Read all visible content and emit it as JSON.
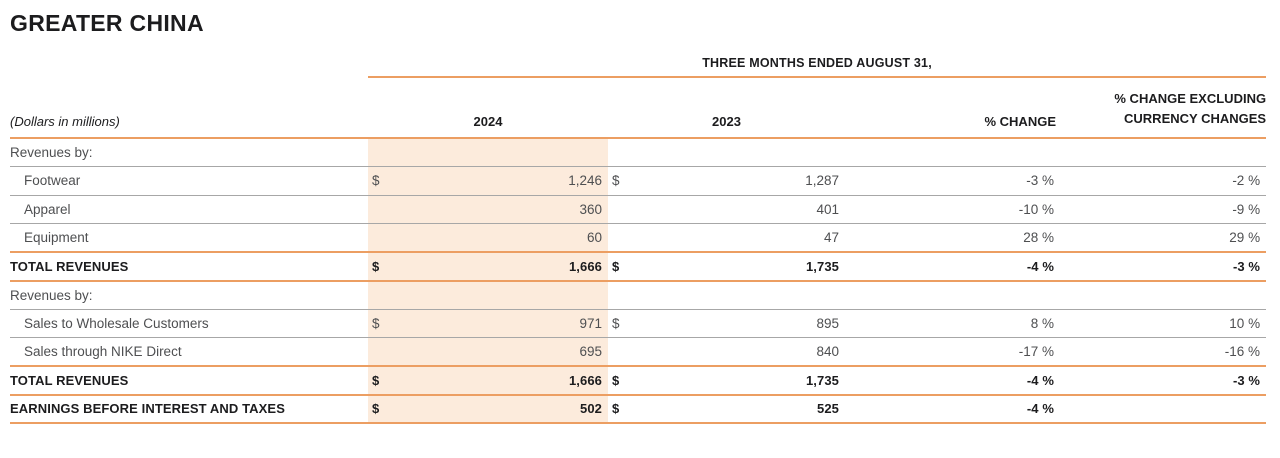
{
  "title": "GREATER CHINA",
  "table": {
    "period_header": "THREE MONTHS ENDED AUGUST 31,",
    "units_note": "(Dollars in millions)",
    "col_2024": "2024",
    "col_2023": "2023",
    "col_pct_change": "% CHANGE",
    "col_pct_change_excl": "% CHANGE EXCLUDING CURRENCY CHANGES"
  },
  "rows": [
    {
      "label": "Revenues by:",
      "usd24": "",
      "v24": "",
      "usd23": "",
      "v23": "",
      "pct": "",
      "pctx": ""
    },
    {
      "label": "Footwear",
      "usd24": "$",
      "v24": "1,246",
      "usd23": "$",
      "v23": "1,287",
      "pct": "-3 %",
      "pctx": "-2 %"
    },
    {
      "label": "Apparel",
      "usd24": "",
      "v24": "360",
      "usd23": "",
      "v23": "401",
      "pct": "-10 %",
      "pctx": "-9 %"
    },
    {
      "label": "Equipment",
      "usd24": "",
      "v24": "60",
      "usd23": "",
      "v23": "47",
      "pct": "28 %",
      "pctx": "29 %"
    },
    {
      "label": "TOTAL REVENUES",
      "usd24": "$",
      "v24": "1,666",
      "usd23": "$",
      "v23": "1,735",
      "pct": "-4 %",
      "pctx": "-3 %"
    },
    {
      "label": "Revenues by:",
      "usd24": "",
      "v24": "",
      "usd23": "",
      "v23": "",
      "pct": "",
      "pctx": ""
    },
    {
      "label": "Sales to Wholesale Customers",
      "usd24": "$",
      "v24": "971",
      "usd23": "$",
      "v23": "895",
      "pct": "8 %",
      "pctx": "10 %"
    },
    {
      "label": "Sales through NIKE Direct",
      "usd24": "",
      "v24": "695",
      "usd23": "",
      "v23": "840",
      "pct": "-17 %",
      "pctx": "-16 %"
    },
    {
      "label": "TOTAL REVENUES",
      "usd24": "$",
      "v24": "1,666",
      "usd23": "$",
      "v23": "1,735",
      "pct": "-4 %",
      "pctx": "-3 %"
    },
    {
      "label": "EARNINGS BEFORE INTEREST AND TAXES",
      "usd24": "$",
      "v24": "502",
      "usd23": "$",
      "v23": "525",
      "pct": "-4 %",
      "pctx": ""
    }
  ],
  "colors": {
    "accent_orange_line": "#ec9e62",
    "highlight_peach": "#fcebdc",
    "gray_line": "#a7a7a7",
    "text_regular": "#4e4f51",
    "text_bold": "#1c1c1e"
  }
}
